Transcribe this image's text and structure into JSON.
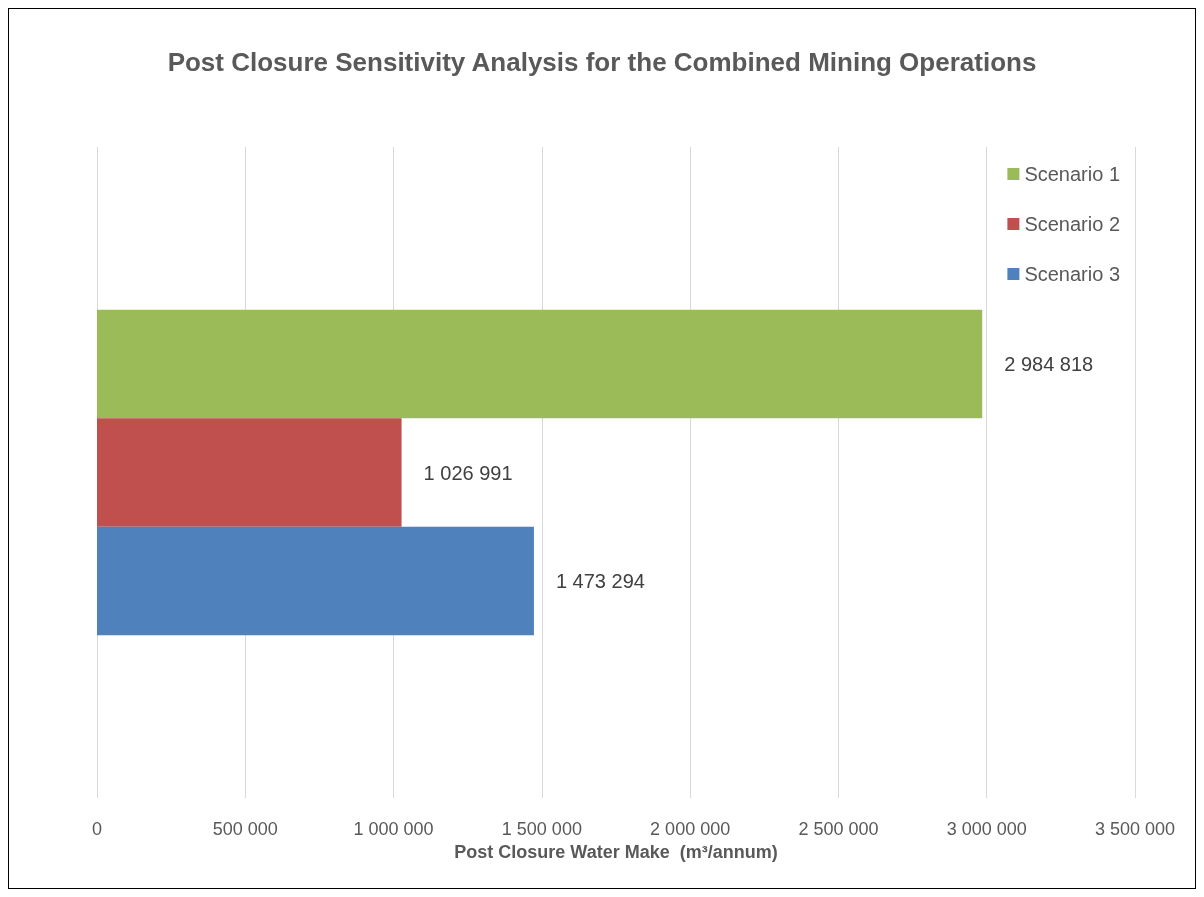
{
  "chart_data": {
    "type": "bar",
    "orientation": "horizontal",
    "title": "Post Closure Sensitivity Analysis for the Combined Mining Operations",
    "xlabel": "Post Closure Water Make  (m³/annum)",
    "categories": [
      null
    ],
    "series": [
      {
        "name": "Scenario 1",
        "color": "#9bbb59",
        "values": [
          2984818
        ],
        "value_labels": [
          "2 984 818"
        ]
      },
      {
        "name": "Scenario 2",
        "color": "#c0504d",
        "values": [
          1026991
        ],
        "value_labels": [
          "1 026 991"
        ]
      },
      {
        "name": "Scenario 3",
        "color": "#4f81bd",
        "values": [
          1473294
        ],
        "value_labels": [
          "1 473 294"
        ]
      }
    ],
    "xlim": [
      0,
      3500000
    ],
    "xticks": [
      0,
      {
        "value": 500000,
        "label": "500 000"
      },
      {
        "value": 1000000,
        "label": "1 000 000"
      },
      {
        "value": 1500000,
        "label": "1 500 000"
      },
      {
        "value": 2000000,
        "label": "2 000 000"
      },
      {
        "value": 2500000,
        "label": "2 500 000"
      },
      {
        "value": 3000000,
        "label": "3 000 000"
      },
      {
        "value": 3500000,
        "label": "3 500 000"
      }
    ],
    "grid": "x",
    "legend": "top right"
  }
}
